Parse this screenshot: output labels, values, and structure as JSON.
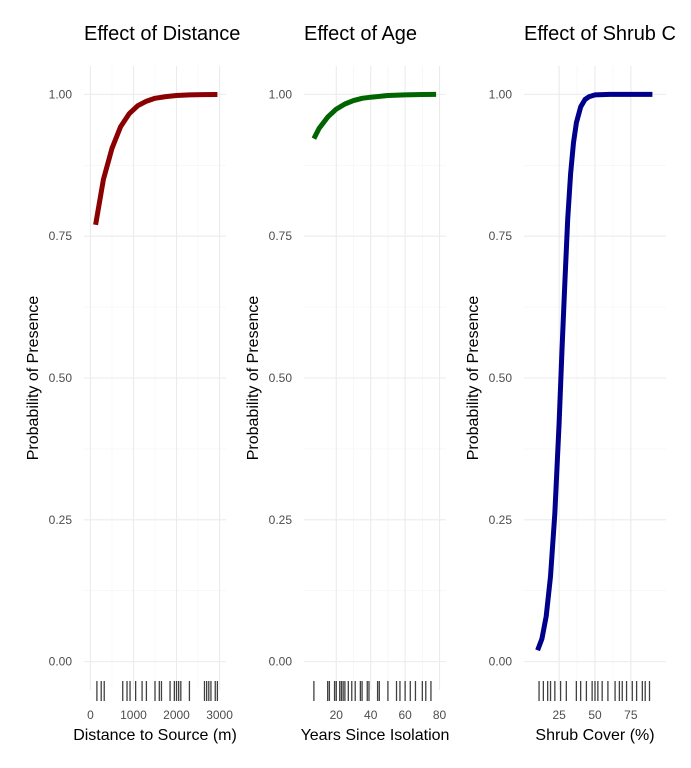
{
  "chart_data": [
    {
      "type": "line",
      "title": "Effect of Distance",
      "xlabel": "Distance to Source (m)",
      "ylabel": "Probability of Presence",
      "xlim": [
        0,
        3000
      ],
      "ylim": [
        0,
        1
      ],
      "xticks": [
        0,
        1000,
        2000,
        3000
      ],
      "xtick_labels": [
        "0",
        "1000",
        "2000",
        "3000"
      ],
      "yticks": [
        0,
        0.25,
        0.5,
        0.75,
        1
      ],
      "ytick_labels": [
        "0.00",
        "0.25",
        "0.50",
        "0.75",
        "1.00"
      ],
      "color": "#8b0000",
      "series": [
        {
          "x": [
            120,
            300,
            500,
            700,
            900,
            1100,
            1300,
            1500,
            1750,
            2000,
            2300,
            2600,
            2950
          ],
          "y": [
            0.77,
            0.85,
            0.905,
            0.943,
            0.966,
            0.98,
            0.988,
            0.993,
            0.996,
            0.998,
            0.999,
            0.9995,
            0.9998
          ]
        }
      ],
      "rug": [
        150,
        250,
        320,
        750,
        850,
        920,
        1050,
        1200,
        1300,
        1500,
        1600,
        1650,
        1850,
        1950,
        2000,
        2050,
        2100,
        2300,
        2650,
        2700,
        2750,
        2800,
        2900,
        2950
      ]
    },
    {
      "type": "line",
      "title": "Effect of Age",
      "xlabel": "Years Since Isolation",
      "ylabel": "Probability of Presence",
      "xlim": [
        5,
        80
      ],
      "ylim": [
        0,
        1
      ],
      "xticks": [
        20,
        40,
        60,
        80
      ],
      "xtick_labels": [
        "20",
        "40",
        "60",
        "80"
      ],
      "yticks": [
        0,
        0.25,
        0.5,
        0.75,
        1
      ],
      "ytick_labels": [
        "0.00",
        "0.25",
        "0.50",
        "0.75",
        "1.00"
      ],
      "color": "#006400",
      "series": [
        {
          "x": [
            7,
            10,
            15,
            20,
            25,
            30,
            35,
            40,
            50,
            60,
            70,
            78
          ],
          "y": [
            0.922,
            0.94,
            0.96,
            0.974,
            0.983,
            0.989,
            0.993,
            0.995,
            0.998,
            0.999,
            0.9997,
            0.9999
          ]
        }
      ],
      "rug": [
        7,
        15,
        16,
        19,
        20,
        22,
        23,
        24,
        25,
        27,
        29,
        31,
        34,
        35,
        38,
        39,
        44,
        45,
        50,
        55,
        57,
        60,
        63,
        66,
        70,
        72,
        75
      ]
    },
    {
      "type": "line",
      "title": "Effect of Shrub C",
      "xlabel": "Shrub Cover (%)",
      "ylabel": "Probability of Presence",
      "xlim": [
        5,
        95
      ],
      "ylim": [
        0,
        1
      ],
      "xticks": [
        25,
        50,
        75
      ],
      "xtick_labels": [
        "25",
        "50",
        "75"
      ],
      "yticks": [
        0,
        0.25,
        0.5,
        0.75,
        1
      ],
      "ytick_labels": [
        "0.00",
        "0.25",
        "0.50",
        "0.75",
        "1.00"
      ],
      "color": "#00008b",
      "series": [
        {
          "x": [
            10,
            13,
            16,
            19,
            22,
            25,
            27,
            29,
            31,
            33,
            35,
            37,
            40,
            43,
            46,
            50,
            55,
            60,
            70,
            80,
            90
          ],
          "y": [
            0.02,
            0.04,
            0.08,
            0.15,
            0.26,
            0.42,
            0.55,
            0.67,
            0.78,
            0.86,
            0.915,
            0.95,
            0.978,
            0.991,
            0.996,
            0.999,
            0.9996,
            0.9999,
            1,
            1,
            1
          ]
        }
      ],
      "rug": [
        11,
        14,
        17,
        19,
        22,
        26,
        30,
        37,
        40,
        44,
        48,
        50,
        52,
        55,
        59,
        64,
        67,
        69,
        72,
        76,
        79,
        83,
        85,
        88
      ]
    }
  ]
}
